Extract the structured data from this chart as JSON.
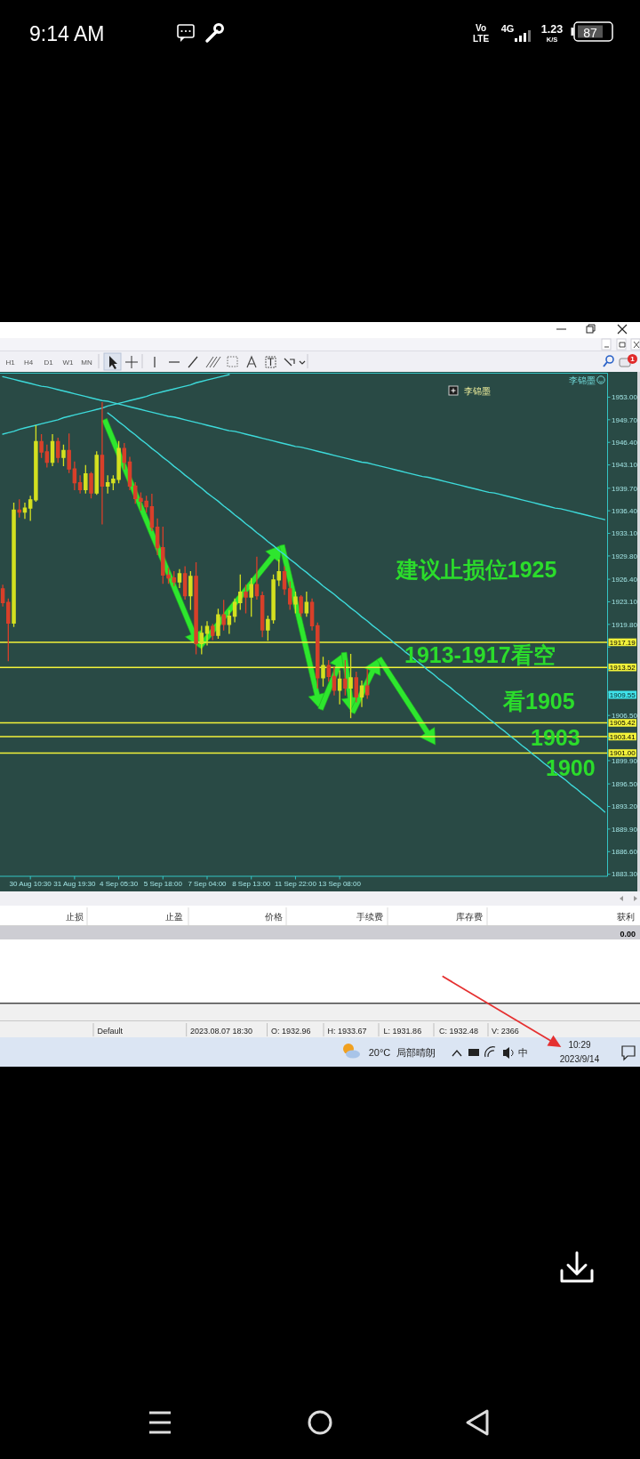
{
  "chart_data": {
    "type": "candlestick",
    "categories": [
      null,
      null,
      null,
      null,
      null,
      "30 Aug 10:30",
      null,
      null,
      null,
      null,
      null,
      null,
      null,
      "31 Aug 19:30",
      null,
      null,
      null,
      null,
      null,
      null,
      null,
      "4 Sep 05:30",
      null,
      null,
      null,
      null,
      null,
      null,
      null,
      "5 Sep 18:00",
      null,
      null,
      null,
      null,
      null,
      null,
      null,
      "7 Sep 04:00",
      null,
      null,
      null,
      null,
      null,
      null,
      null,
      "8 Sep 13:00",
      null,
      null,
      null,
      null,
      null,
      null,
      null,
      "11 Sep 22:00",
      null,
      null,
      null,
      null,
      null,
      null,
      null,
      "13 Sep 08:00",
      null,
      null,
      null,
      null,
      null,
      null,
      null,
      null,
      null,
      null,
      null,
      null,
      null,
      null,
      null,
      null,
      null,
      null,
      null,
      null,
      null,
      null,
      null,
      null,
      null,
      null,
      null,
      null,
      null,
      null,
      null,
      null,
      null,
      null,
      null,
      null,
      null,
      null,
      null,
      null,
      null,
      null,
      null,
      null,
      null,
      null,
      null,
      null
    ],
    "ohlc": [
      [
        1925,
        1925.5,
        1922.5,
        1923
      ],
      [
        1923,
        1923.5,
        1914.5,
        1920
      ],
      [
        1920,
        1937.5,
        1919.5,
        1936.5
      ],
      [
        1936.5,
        1938,
        1935.5,
        1936.2
      ],
      [
        1936.2,
        1937.5,
        1935.3,
        1936.8
      ],
      [
        1936.8,
        1938.5,
        1935,
        1938
      ],
      [
        1938,
        1948.8,
        1937.8,
        1946.5
      ],
      [
        1946.5,
        1947.5,
        1944.2,
        1945
      ],
      [
        1945,
        1946,
        1942.8,
        1943.5
      ],
      [
        1943.5,
        1947.5,
        1943,
        1946.5
      ],
      [
        1946.5,
        1947,
        1943.5,
        1944.2
      ],
      [
        1944.2,
        1946,
        1943,
        1945.2
      ],
      [
        1945.2,
        1947.6,
        1942,
        1942.5
      ],
      [
        1942.5,
        1943.5,
        1939.5,
        1940.5
      ],
      [
        1940.5,
        1941.5,
        1939,
        1939.5
      ],
      [
        1939.5,
        1943,
        1939,
        1941.8
      ],
      [
        1941.8,
        1942,
        1938.3,
        1939
      ],
      [
        1939,
        1945,
        1938.8,
        1944.5
      ],
      [
        1944.5,
        1952.2,
        1934.5,
        1940
      ],
      [
        1940,
        1941.5,
        1939,
        1940.5
      ],
      [
        1940.5,
        1941.5,
        1939.5,
        1941
      ],
      [
        1941,
        1946.5,
        1940.5,
        1945.5
      ],
      [
        1945.5,
        1946.2,
        1942.5,
        1943.5
      ],
      [
        1943.5,
        1944.2,
        1939.5,
        1940
      ],
      [
        1940,
        1940.5,
        1937.5,
        1938.2
      ],
      [
        1938.2,
        1939,
        1936.5,
        1937.8
      ],
      [
        1937.8,
        1938.5,
        1936.2,
        1937
      ],
      [
        1937,
        1938.8,
        1933.5,
        1934
      ],
      [
        1934,
        1935.2,
        1930,
        1931
      ],
      [
        1931,
        1934,
        1925.8,
        1927
      ],
      [
        1927,
        1928,
        1925.8,
        1926.6
      ],
      [
        1926.6,
        1927.5,
        1925.5,
        1926
      ],
      [
        1926,
        1927.8,
        1925.2,
        1927.2
      ],
      [
        1927.2,
        1928.2,
        1923.5,
        1924
      ],
      [
        1924,
        1927.5,
        1922,
        1926.8
      ],
      [
        1926.8,
        1928.8,
        1915.5,
        1917
      ],
      [
        1917,
        1919.5,
        1915.5,
        1918.5
      ],
      [
        1918.5,
        1920.2,
        1916.8,
        1919.5
      ],
      [
        1919.5,
        1919.8,
        1917.6,
        1918.2
      ],
      [
        1918.2,
        1922,
        1917.8,
        1921.2
      ],
      [
        1921.2,
        1923.3,
        1919,
        1919.8
      ],
      [
        1919.8,
        1921.8,
        1918.5,
        1921
      ],
      [
        1921,
        1923.5,
        1920.2,
        1923
      ],
      [
        1923,
        1927,
        1922,
        1924.5
      ],
      [
        1924.5,
        1925.5,
        1921.5,
        1923.8
      ],
      [
        1923.8,
        1926.5,
        1921,
        1925.6
      ],
      [
        1925.6,
        1929.6,
        1923.5,
        1924
      ],
      [
        1924,
        1924.5,
        1918,
        1919
      ],
      [
        1919,
        1921,
        1917.5,
        1920.5
      ],
      [
        1920.5,
        1927,
        1920,
        1926.3
      ],
      [
        1926.3,
        1929.2,
        1925.5,
        1927.5
      ],
      [
        1927.5,
        1928.2,
        1924.2,
        1925
      ],
      [
        1925,
        1926,
        1922,
        1922.8
      ],
      [
        1922.8,
        1924.5,
        1921.5,
        1923.8
      ],
      [
        1923.8,
        1924,
        1921,
        1921.5
      ],
      [
        1921.5,
        1924.5,
        1921,
        1923
      ],
      [
        1923,
        1923.5,
        1919,
        1919.6
      ],
      [
        1919.6,
        1920,
        1910.5,
        1912
      ],
      [
        1912,
        1915,
        1910.8,
        1913.8
      ],
      [
        1913.8,
        1914.5,
        1911.5,
        1912.2
      ],
      [
        1912.2,
        1913.5,
        1909.5,
        1910.2
      ],
      [
        1910.2,
        1913,
        1908.2,
        1911.8
      ],
      [
        1911.8,
        1914.5,
        1909.5,
        1910.5
      ],
      [
        1910.5,
        1915.4,
        1906.2,
        1912
      ],
      [
        1912,
        1912.8,
        1908.5,
        1909.2
      ],
      [
        1909.2,
        1911.5,
        1907.8,
        1910.8
      ],
      [
        1910.8,
        1913.2,
        1909,
        1909.55
      ],
      null,
      null,
      null,
      null,
      null,
      null,
      null,
      null,
      null,
      null,
      null,
      null,
      null,
      null,
      null,
      null,
      null,
      null,
      null,
      null,
      null,
      null,
      null,
      null,
      null,
      null,
      null,
      null,
      null,
      null,
      null,
      null,
      null,
      null,
      null,
      null,
      null,
      null,
      null,
      null,
      null,
      null,
      null
    ],
    "colors": [
      "#d8402a",
      "#d8402a",
      "#d4e020",
      "#d8402a",
      "#d4e020",
      "#d4e020",
      "#d4e020",
      "#d8402a",
      "#d8402a",
      "#d4e020",
      "#d8402a",
      "#d4e020",
      "#d8402a",
      "#d8402a",
      "#d8402a",
      "#d4e020",
      "#d8402a",
      "#d4e020",
      "#d8402a",
      "#d4e020",
      "#d4e020",
      "#d4e020",
      "#d8402a",
      "#d8402a",
      "#d8402a",
      "#d8402a",
      "#d8402a",
      "#d8402a",
      "#d8402a",
      "#d8402a",
      "#d8402a",
      "#d8402a",
      "#d4e020",
      "#d8402a",
      "#d4e020",
      "#d8402a",
      "#d4e020",
      "#d4e020",
      "#d8402a",
      "#d4e020",
      "#d8402a",
      "#d4e020",
      "#d4e020",
      "#d4e020",
      "#d8402a",
      "#d4e020",
      "#d8402a",
      "#d8402a",
      "#d4e020",
      "#d4e020",
      "#d4e020",
      "#d8402a",
      "#d8402a",
      "#d4e020",
      "#d8402a",
      "#d4e020",
      "#d8402a",
      "#d8402a",
      "#d4e020",
      "#d8402a",
      "#d8402a",
      "#d4e020",
      "#d8402a",
      "#d4e020",
      "#d8402a",
      "#d4e020",
      "#d8402a",
      null,
      null,
      null,
      null,
      null,
      null,
      null,
      null,
      null,
      null,
      null,
      null,
      null,
      null,
      null,
      null,
      null,
      null,
      null,
      null,
      null,
      null,
      null,
      null,
      null,
      null,
      null,
      null,
      null,
      null,
      null,
      null,
      null,
      null,
      null,
      null,
      null,
      null,
      null,
      null,
      null,
      null,
      null
    ],
    "ylim": [
      1883,
      1956.5
    ],
    "yticks": [
      {
        "value": 1953,
        "label": "1953.00"
      },
      {
        "value": 1949.7,
        "label": "1949.70"
      },
      {
        "value": 1946.4,
        "label": "1946.40"
      },
      {
        "value": 1943.1,
        "label": "1943.10"
      },
      {
        "value": 1939.7,
        "label": "1939.70"
      },
      {
        "value": 1936.4,
        "label": "1936.40"
      },
      {
        "value": 1933.1,
        "label": "1933.10"
      },
      {
        "value": 1929.8,
        "label": "1929.80"
      },
      {
        "value": 1926.4,
        "label": "1926.40"
      },
      {
        "value": 1923.1,
        "label": "1923.10"
      },
      {
        "value": 1919.8,
        "label": "1919.80"
      },
      {
        "value": 1916.5,
        "label": null
      },
      {
        "value": 1913.2,
        "label": null
      },
      {
        "value": 1909.9,
        "label": null
      },
      {
        "value": 1906.5,
        "label": "1906.50"
      },
      {
        "value": 1903.2,
        "label": null
      },
      {
        "value": 1899.9,
        "label": "1899.90"
      },
      {
        "value": 1896.5,
        "label": "1896.50"
      },
      {
        "value": 1893.2,
        "label": "1893.20"
      },
      {
        "value": 1889.9,
        "label": "1889.90"
      },
      {
        "value": 1886.6,
        "label": "1886.60"
      },
      {
        "value": 1883.3,
        "label": "1883.30"
      }
    ],
    "series": [
      {
        "type": "line",
        "color": "#3ddada",
        "values": [
          1947.6,
          1947.8,
          1948.0,
          1948.3,
          1948.5,
          1948.7,
          1948.9,
          1949.1,
          1949.3,
          1949.5,
          1949.7,
          1950.0,
          1950.2,
          1950.4,
          1950.6,
          1950.8,
          1951.0,
          1951.2,
          1951.4,
          1951.7,
          1951.9,
          1952.1,
          1952.3,
          1952.5,
          1952.7,
          1952.9,
          1953.1,
          1953.4,
          1953.6,
          1953.8,
          1954.0,
          1954.2,
          1954.4,
          1954.6,
          1954.8,
          1955.1,
          1955.3,
          1955.5,
          1955.7,
          1955.9,
          1956.1,
          1956.3,
          null,
          null,
          null,
          null,
          null,
          null,
          null,
          null,
          null,
          null,
          null,
          null,
          null,
          null,
          null,
          null,
          null,
          null,
          null,
          null,
          null,
          null,
          null,
          null,
          null,
          null,
          null,
          null,
          null,
          null,
          null,
          null,
          null,
          null,
          null,
          null,
          null,
          null,
          null,
          null,
          null,
          null,
          null,
          null,
          null,
          null,
          null,
          null,
          null,
          null,
          null,
          null,
          null,
          null,
          null,
          null,
          null,
          null,
          null,
          null,
          null,
          null,
          null,
          null,
          null,
          null,
          null,
          null
        ]
      },
      {
        "type": "line",
        "color": "#3ddada",
        "values": [
          1956.0,
          1955.8,
          1955.6,
          1955.4,
          1955.2,
          1955.0,
          1954.8,
          1954.6,
          1954.5,
          1954.3,
          1954.1,
          1953.9,
          1953.7,
          1953.5,
          1953.3,
          1953.1,
          1952.9,
          1952.7,
          1952.5,
          1952.4,
          1952.2,
          1952.0,
          1951.8,
          1951.6,
          1951.4,
          1951.2,
          1951.0,
          1950.8,
          1950.6,
          1950.4,
          1950.2,
          1950.1,
          1949.9,
          1949.7,
          1949.5,
          1949.3,
          1949.1,
          1948.9,
          1948.7,
          1948.5,
          1948.3,
          1948.1,
          1948.0,
          1947.8,
          1947.6,
          1947.4,
          1947.2,
          1947.0,
          1946.8,
          1946.6,
          1946.4,
          1946.2,
          1946.0,
          1945.8,
          1945.7,
          1945.5,
          1945.3,
          1945.1,
          1944.9,
          1944.7,
          1944.5,
          1944.3,
          1944.1,
          1943.9,
          1943.7,
          1943.5,
          1943.4,
          1943.2,
          1943.0,
          1942.8,
          1942.6,
          1942.4,
          1942.2,
          1942.0,
          1941.8,
          1941.6,
          1941.4,
          1941.3,
          1941.1,
          1940.9,
          1940.7,
          1940.5,
          1940.3,
          1940.1,
          1939.9,
          1939.7,
          1939.5,
          1939.3,
          1939.1,
          1939.0,
          1938.8,
          1938.6,
          1938.4,
          1938.2,
          1938.0,
          1937.8,
          1937.6,
          1937.4,
          1937.2,
          1937.0,
          1936.8,
          1936.7,
          1936.5,
          1936.3,
          1936.1,
          1935.9,
          1935.7,
          1935.5,
          1935.3,
          1935.1
        ]
      },
      {
        "type": "line",
        "color": "#3ddada",
        "values": [
          null,
          null,
          null,
          null,
          null,
          null,
          null,
          null,
          null,
          null,
          null,
          null,
          null,
          null,
          null,
          null,
          null,
          null,
          null,
          1950.7,
          1950.1,
          1949.4,
          1948.8,
          1948.1,
          1947.5,
          1946.8,
          1946.2,
          1945.5,
          1944.9,
          1944.2,
          1943.6,
          1942.9,
          1942.3,
          1941.6,
          1941.0,
          1940.3,
          1939.7,
          1939.0,
          1938.4,
          1937.8,
          1937.1,
          1936.5,
          1935.8,
          1935.2,
          1934.5,
          1933.9,
          1933.2,
          1932.6,
          1931.9,
          1931.3,
          1930.6,
          1930.0,
          1929.3,
          1928.7,
          1928.0,
          1927.4,
          1926.7,
          1926.1,
          1925.4,
          1924.8,
          1924.2,
          1923.5,
          1922.9,
          1922.2,
          1921.6,
          1920.9,
          1920.3,
          1919.6,
          1919.0,
          1918.3,
          1917.7,
          1917.0,
          1916.4,
          1915.7,
          1915.1,
          1914.4,
          1913.8,
          1913.1,
          1912.5,
          1911.8,
          1911.2,
          1910.6,
          1909.9,
          1909.3,
          1908.6,
          1908.0,
          1907.3,
          1906.7,
          1906.0,
          1905.4,
          1904.7,
          1904.1,
          1903.4,
          1902.8,
          1902.1,
          1901.5,
          1900.8,
          1900.2,
          1899.5,
          1898.9,
          1898.2,
          1897.6,
          1897.0,
          1896.3,
          1895.7,
          1895.0,
          1894.4,
          1893.7,
          1893.1,
          1892.4
        ]
      }
    ],
    "ref_lines": [
      {
        "axis": "y",
        "value": 1917.19,
        "label": "1917.19",
        "color": "#f2f23a"
      },
      {
        "axis": "y",
        "value": 1913.52,
        "label": "1913.52",
        "color": "#f2f23a"
      },
      {
        "axis": "y",
        "value": 1905.42,
        "label": "1905.42",
        "color": "#f2f23a"
      },
      {
        "axis": "y",
        "value": 1903.41,
        "label": "1903.41",
        "color": "#f2f23a"
      },
      {
        "axis": "y",
        "value": 1901.0,
        "label": "1901.00",
        "color": "#f2f23a"
      }
    ],
    "annotations": [
      "建议止损位1925",
      {
        "text": "1913-1917看空",
        "y": 1913.52
      },
      "看1905",
      "1903",
      "1900",
      "1909.55",
      "李锦墨",
      "李锦墨",
      "9:14 AM",
      "Vo",
      "LTE",
      "4G",
      "1.23",
      "K/S",
      "87",
      "H1",
      "H4",
      "D1",
      "W1",
      "MN",
      "1",
      "止损",
      "止盈",
      "价格",
      "手续费",
      "库存费",
      "获利",
      "0.00",
      "Default",
      "2023.08.07 18:30",
      "O: 1932.96",
      "H: 1933.67",
      "L: 1931.86",
      "C: 1932.48",
      "V: 2366",
      "20°C",
      "局部晴朗",
      "中",
      "10:29",
      "2023/9/14"
    ]
  }
}
